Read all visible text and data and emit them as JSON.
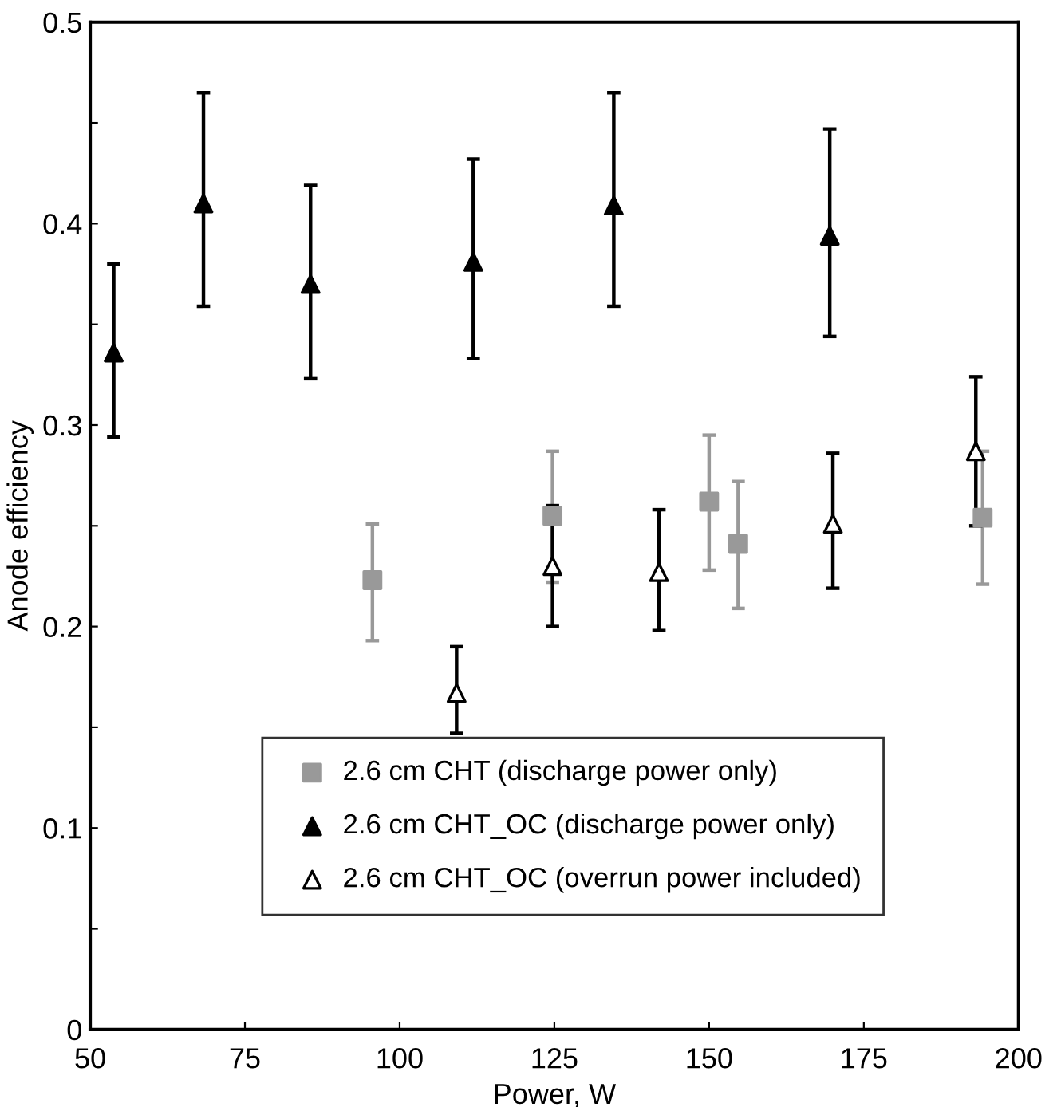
{
  "chart_data": {
    "type": "scatter",
    "xlabel": "Power, W",
    "ylabel": "Anode efficiency",
    "xlim": [
      50,
      200
    ],
    "xticks": [
      50,
      75,
      100,
      125,
      150,
      175,
      200
    ],
    "ylim": [
      0,
      0.5
    ],
    "yticks": [
      0,
      {
        "value": 0.05,
        "label": null
      },
      0.1,
      {
        "value": 0.15,
        "label": null
      },
      0.2,
      {
        "value": 0.25,
        "label": null
      },
      0.3,
      {
        "value": 0.35,
        "label": null
      },
      0.4,
      {
        "value": 0.45,
        "label": null
      },
      0.5
    ],
    "grid": false,
    "legend": "bottom",
    "series": [
      {
        "name": "2.6 cm CHT (discharge power only)",
        "color": "#999999",
        "marker": "square",
        "x": [
          95.6,
          124.7,
          150,
          154.7,
          194.2
        ],
        "values": [
          0.223,
          0.255,
          0.262,
          0.241,
          0.254
        ],
        "errors": [
          [
            0.193,
            0.251
          ],
          [
            0.222,
            0.287
          ],
          [
            0.228,
            0.295
          ],
          [
            0.209,
            0.272
          ],
          [
            0.221,
            0.287
          ]
        ]
      },
      {
        "name": "2.6 cm CHT_OC (discharge power only)",
        "color": "#000000",
        "marker": "triangle",
        "x": [
          53.8,
          68.3,
          85.6,
          111.9,
          134.6,
          169.5
        ],
        "values": [
          0.336,
          0.41,
          0.37,
          0.381,
          0.409,
          0.394
        ],
        "errors": [
          [
            0.294,
            0.38
          ],
          [
            0.359,
            0.465
          ],
          [
            0.323,
            0.419
          ],
          [
            0.333,
            0.432
          ],
          [
            0.359,
            0.465
          ],
          [
            0.344,
            0.447
          ]
        ]
      },
      {
        "name": "2.6 cm CHT_OC (overrun power included)",
        "color": "#ffffff",
        "marker": "triangle",
        "x": [
          109.2,
          124.7,
          141.9,
          170,
          193.1
        ],
        "values": [
          0.167,
          0.23,
          0.227,
          0.251,
          0.287
        ],
        "errors": [
          [
            0.147,
            0.19
          ],
          0.03,
          [
            0.198,
            0.258
          ],
          [
            0.219,
            0.286
          ],
          [
            0.25,
            0.324
          ]
        ]
      }
    ]
  }
}
